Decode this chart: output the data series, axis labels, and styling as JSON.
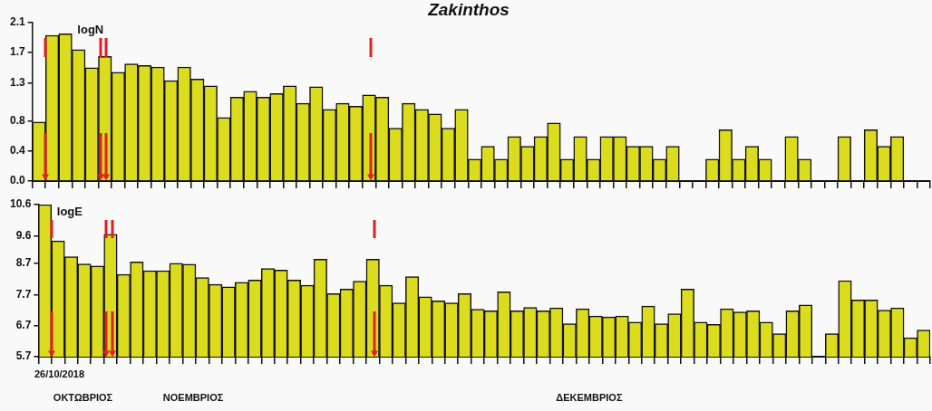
{
  "chart_data": [
    {
      "type": "bar",
      "title": "Zakinthos",
      "ylabel": "logN",
      "color": "#dcdc1e",
      "grid": false,
      "legend": false,
      "tick_labels": "y",
      "categories": [
        null,
        null,
        null,
        null,
        null,
        null,
        null,
        null,
        null,
        null,
        null,
        null,
        null,
        null,
        null,
        null,
        null,
        null,
        null,
        null,
        null,
        null,
        null,
        null,
        null,
        null,
        null,
        null,
        null,
        null,
        null,
        null,
        null,
        null,
        null,
        null,
        null,
        null,
        null,
        null,
        null,
        null,
        null,
        null,
        null,
        null,
        null,
        null,
        null,
        null,
        null,
        null,
        null,
        null,
        null,
        null,
        null,
        null,
        null,
        null,
        null,
        null,
        null,
        null,
        null,
        null,
        null,
        null
      ],
      "values": [
        0.78,
        1.93,
        1.95,
        1.74,
        1.5,
        1.65,
        1.44,
        1.55,
        1.53,
        1.51,
        1.33,
        1.51,
        1.35,
        1.26,
        0.84,
        1.11,
        1.19,
        1.11,
        1.16,
        1.26,
        1.03,
        1.25,
        0.95,
        1.03,
        0.99,
        1.14,
        1.11,
        0.7,
        1.03,
        0.95,
        0.89,
        0.7,
        0.95,
        0.29,
        0.46,
        0.29,
        0.59,
        0.46,
        0.59,
        0.77,
        0.29,
        0.59,
        0.29,
        0.59,
        0.59,
        0.46,
        0.46,
        0.29,
        0.46,
        0,
        0,
        0.29,
        0.68,
        0.29,
        0.46,
        0.29,
        0,
        0.59,
        0.29,
        null,
        0,
        0.59,
        0,
        0.68,
        0.46,
        0.59,
        0,
        0
      ],
      "ylim": [
        0,
        2.1
      ],
      "yticks": [
        {
          "value": 0,
          "label": "0.0"
        },
        0.4,
        0.8,
        1.3,
        1.7,
        2.1
      ]
    },
    {
      "type": "bar",
      "ylabel": "logE",
      "color": "#dcdc1e",
      "grid": false,
      "legend": false,
      "tick_labels": "y",
      "categories": [
        null,
        null,
        null,
        null,
        null,
        null,
        null,
        null,
        null,
        null,
        null,
        null,
        null,
        null,
        null,
        null,
        null,
        null,
        null,
        null,
        null,
        null,
        null,
        null,
        null,
        null,
        null,
        null,
        null,
        null,
        null,
        null,
        null,
        null,
        null,
        null,
        null,
        null,
        null,
        null,
        null,
        null,
        null,
        null,
        null,
        null,
        null,
        null,
        null,
        null,
        null,
        null,
        null,
        null,
        null,
        null,
        null,
        null,
        null,
        null,
        null,
        null,
        null,
        null,
        null,
        null,
        null,
        null
      ],
      "values": [
        10.6,
        9.43,
        8.92,
        8.69,
        8.62,
        9.64,
        8.35,
        8.75,
        8.47,
        8.47,
        8.71,
        8.68,
        8.25,
        8.03,
        7.95,
        8.1,
        8.17,
        8.54,
        8.49,
        8.17,
        8,
        8.84,
        7.73,
        7.88,
        8.13,
        8.84,
        8,
        7.43,
        8.28,
        7.63,
        7.5,
        7.43,
        7.73,
        7.23,
        7.18,
        7.79,
        7.18,
        7.29,
        7.18,
        7.27,
        6.76,
        7.24,
        7.01,
        6.98,
        7.01,
        6.81,
        7.33,
        6.76,
        7.08,
        7.88,
        6.81,
        6.74,
        7.24,
        7.14,
        7.18,
        6.81,
        6.44,
        7.18,
        7.37,
        null,
        6.44,
        8.15,
        7.53,
        7.53,
        7.2,
        7.27,
        6.31,
        6.56
      ],
      "ylim": [
        5.7,
        10.6
      ],
      "yticks": [
        5.7,
        6.7,
        7.7,
        8.7,
        9.6,
        10.6
      ],
      "annotations": [
        "26/10/2018",
        "ΟΚΤΩΒΡΙΟΣ",
        "ΝΟΕΜΒΡΙΟΣ",
        "ΔΕΚΕΜΒΡΙΟΣ"
      ]
    }
  ]
}
